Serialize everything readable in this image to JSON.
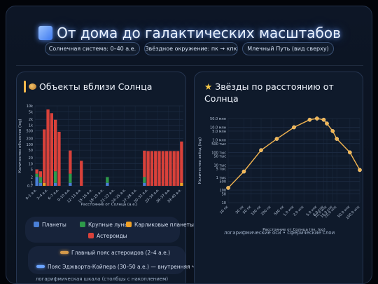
{
  "header": {
    "title": "От дома до галактических масштабов",
    "pills": [
      "Солнечная система: 0–40 а.е.",
      "Звёздное окружение: пк → кпк",
      "Млечный Путь (вид сверху)"
    ]
  },
  "left_card": {
    "title": "Объекты вблизи Солнца",
    "icon": "planet-emoji-icon",
    "legend": [
      "Планеты",
      "Крупные луны",
      "Карликовые планеты",
      "Астероиды"
    ],
    "bands": [
      "Главный пояс астероидов (2–4 а.е.)",
      "Пояс Эджворта-Койпера (30–50 а.е.) — внутренняя часть"
    ],
    "footnote": "логарифмическая шкала (столбцы с накоплением)"
  },
  "right_card": {
    "title": "Звёзды по расстоянию от Солнца",
    "icon": "star-emoji-icon",
    "footnote": "логарифмические оси • сферические слои"
  },
  "colors": {
    "planets": "#4a7fd6",
    "moons": "#2e9a4a",
    "dwarfs": "#f0a126",
    "asteroids": "#d9413a",
    "line": "#f2b450",
    "title_glow": "#5b93ff"
  },
  "chart_data": [
    {
      "type": "bar",
      "stacked": true,
      "title": "Объекты вблизи Солнца",
      "xlabel": "Расстояние от Солнца (а.е.)",
      "ylabel": "Количество объектов (log)",
      "yscale": "log",
      "ylim": [
        0.7,
        10000
      ],
      "yticks": [
        "10k",
        "5k",
        "2k",
        "1k",
        "500",
        "200",
        "100",
        "50",
        "20",
        "10",
        "5",
        "2",
        "1",
        "0.7"
      ],
      "xticks": [
        "0–1 а.е.",
        "3–4 а.е.",
        "6–7 а.е.",
        "9–10 а.е.",
        "12–13 а.е.",
        "15–16 а.е.",
        "18–19 а.е.",
        "21–22 а.е.",
        "24–25 а.е.",
        "27–28 а.е.",
        "30–31 а.е.",
        "33–34 а.е.",
        "36–37 а.е.",
        "39–40 а.е."
      ],
      "bins": 40,
      "series": [
        {
          "name": "Планеты",
          "values": [
            2,
            1,
            0,
            0,
            0,
            1,
            0,
            0,
            0,
            1,
            0,
            0,
            0,
            0,
            0,
            0,
            0,
            0,
            0,
            1,
            0,
            0,
            0,
            0,
            0,
            0,
            0,
            0,
            0,
            1,
            0,
            0,
            0,
            0,
            0,
            0,
            0,
            0,
            0,
            0
          ]
        },
        {
          "name": "Крупные луны",
          "values": [
            1,
            1,
            0,
            0,
            0,
            3,
            0,
            0,
            0,
            2,
            0,
            0,
            0,
            0,
            0,
            0,
            0,
            0,
            0,
            1,
            0,
            0,
            0,
            0,
            0,
            0,
            0,
            0,
            0,
            1,
            0,
            0,
            0,
            0,
            0,
            0,
            0,
            0,
            0,
            0
          ]
        },
        {
          "name": "Карликовые планеты",
          "values": [
            0,
            0,
            1,
            0,
            0,
            0,
            0,
            0,
            0,
            0,
            0,
            0,
            0,
            0,
            0,
            0,
            0,
            0,
            0,
            0,
            0,
            0,
            0,
            0,
            0,
            0,
            0,
            0,
            0,
            0,
            0,
            0,
            0,
            0,
            0,
            0,
            0,
            0,
            0,
            1
          ]
        },
        {
          "name": "Астероиды",
          "values": [
            2,
            2,
            600,
            6500,
            4200,
            1900,
            450,
            0,
            0,
            45,
            0,
            0,
            14,
            0,
            0,
            0,
            0,
            0,
            0,
            0,
            0,
            0,
            0,
            0,
            0,
            0,
            0,
            0,
            0,
            45,
            45,
            45,
            45,
            45,
            45,
            45,
            45,
            45,
            45,
            140
          ]
        }
      ]
    },
    {
      "type": "line",
      "title": "Звёзды по расстоянию от Солнца",
      "xlabel": "Расстояние от Солнца (пк, log)",
      "ylabel": "Количество звёзд (log)",
      "xscale": "log",
      "yscale": "log",
      "xticks": [
        "10 пк",
        "30 пк",
        "50 пк",
        "100 пк",
        "200 пк",
        "500 пк",
        "1.0 кпк",
        "2.0 кпк",
        "5.0 кпк",
        "8.0 кпк",
        "10.0 кпк",
        "15.0 кпк",
        "20.0 кпк",
        "50.0 кпк",
        "100.0 кпк"
      ],
      "yticks": [
        "50.0 млн",
        "10.0 млн",
        "5.0 млн",
        "1.0 млн",
        "500 тыс",
        "100 тыс",
        "50 тыс",
        "10 тыс",
        "5 тыс",
        "1 тыс",
        "500",
        "100",
        "50",
        "10"
      ],
      "x": [
        10,
        30,
        100,
        300,
        1000,
        3000,
        5000,
        8000,
        10000,
        15000,
        20000,
        50000,
        100000
      ],
      "y": [
        150,
        3000,
        150000,
        1200000,
        10000000,
        40000000,
        50000000,
        40000000,
        20000000,
        5000000,
        1200000,
        100000,
        4000
      ]
    }
  ]
}
